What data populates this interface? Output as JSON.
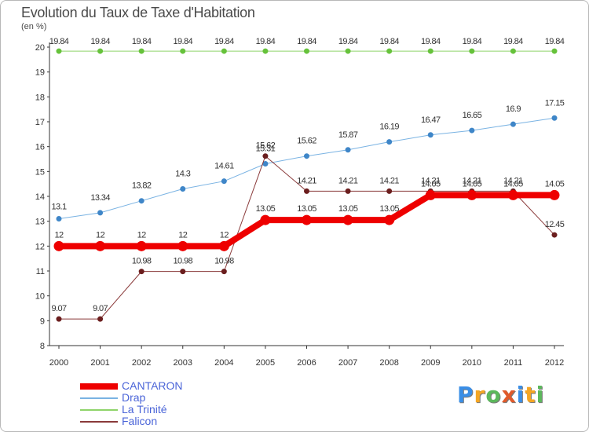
{
  "title": "Evolution du Taux de Taxe d'Habitation",
  "unit_label": "(en %)",
  "logo": {
    "letters": [
      "P",
      "r",
      "o",
      "x",
      "i",
      "t",
      "i"
    ],
    "colors": [
      "#3a8ee6",
      "#f5a623",
      "#5cb85c",
      "#e05a2b",
      "#3a8ee6",
      "#f5a623",
      "#5cb85c"
    ]
  },
  "chart_data": {
    "type": "line",
    "title": "Evolution du Taux de Taxe d'Habitation",
    "ylabel": "(en %)",
    "xlabel": "",
    "x": [
      "2000",
      "2001",
      "2002",
      "2003",
      "2004",
      "2005",
      "2006",
      "2007",
      "2008",
      "2009",
      "2010",
      "2011",
      "2012"
    ],
    "ylim": [
      8,
      20
    ],
    "yticks": [
      "8",
      "9",
      "10",
      "11",
      "12",
      "13",
      "14",
      "15",
      "16",
      "17",
      "18",
      "19",
      "20"
    ],
    "grid": false,
    "legend_position": "bottom-left",
    "series": [
      {
        "name": "CANTARON",
        "color": "#ee0000",
        "stroke_width": 8,
        "marker_radius": 6,
        "values": [
          12,
          12,
          12,
          12,
          12,
          13.05,
          13.05,
          13.05,
          13.05,
          14.05,
          14.05,
          14.05,
          14.05
        ],
        "labels": [
          "12",
          "12",
          "12",
          "12",
          "12",
          "13.05",
          "13.05",
          "13.05",
          "13.05",
          "14.05",
          "14.05",
          "14.05",
          "14.05"
        ]
      },
      {
        "name": "Drap",
        "color": "#7ab3e3",
        "marker_color": "#3f86c8",
        "stroke_width": 1,
        "marker_radius": 3,
        "values": [
          13.1,
          13.34,
          13.82,
          14.3,
          14.61,
          15.31,
          15.62,
          15.87,
          16.19,
          16.47,
          16.65,
          16.9,
          17.15
        ],
        "labels": [
          "13.1",
          "13.34",
          "13.82",
          "14.3",
          "14.61",
          "15.31",
          "15.62",
          "15.87",
          "16.19",
          "16.47",
          "16.65",
          "16.9",
          "17.15"
        ]
      },
      {
        "name": "La Trinité",
        "color": "#8fd46a",
        "marker_color": "#66c23b",
        "stroke_width": 1,
        "marker_radius": 3,
        "values": [
          19.84,
          19.84,
          19.84,
          19.84,
          19.84,
          19.84,
          19.84,
          19.84,
          19.84,
          19.84,
          19.84,
          19.84,
          19.84
        ],
        "labels": [
          "19.84",
          "19.84",
          "19.84",
          "19.84",
          "19.84",
          "19.84",
          "19.84",
          "19.84",
          "19.84",
          "19.84",
          "19.84",
          "19.84",
          "19.84"
        ]
      },
      {
        "name": "Falicon",
        "color": "#8a3a3a",
        "marker_color": "#6b1e1e",
        "stroke_width": 1,
        "marker_radius": 3,
        "values": [
          9.07,
          9.07,
          10.98,
          10.98,
          10.98,
          15.62,
          14.21,
          14.21,
          14.21,
          14.21,
          14.21,
          14.21,
          12.45
        ],
        "labels": [
          "9.07",
          "9.07",
          "10.98",
          "10.98",
          "10.98",
          "15.62",
          "14.21",
          "14.21",
          "14.21",
          "14.21",
          "14.21",
          "14.21",
          "12.45"
        ]
      }
    ]
  }
}
